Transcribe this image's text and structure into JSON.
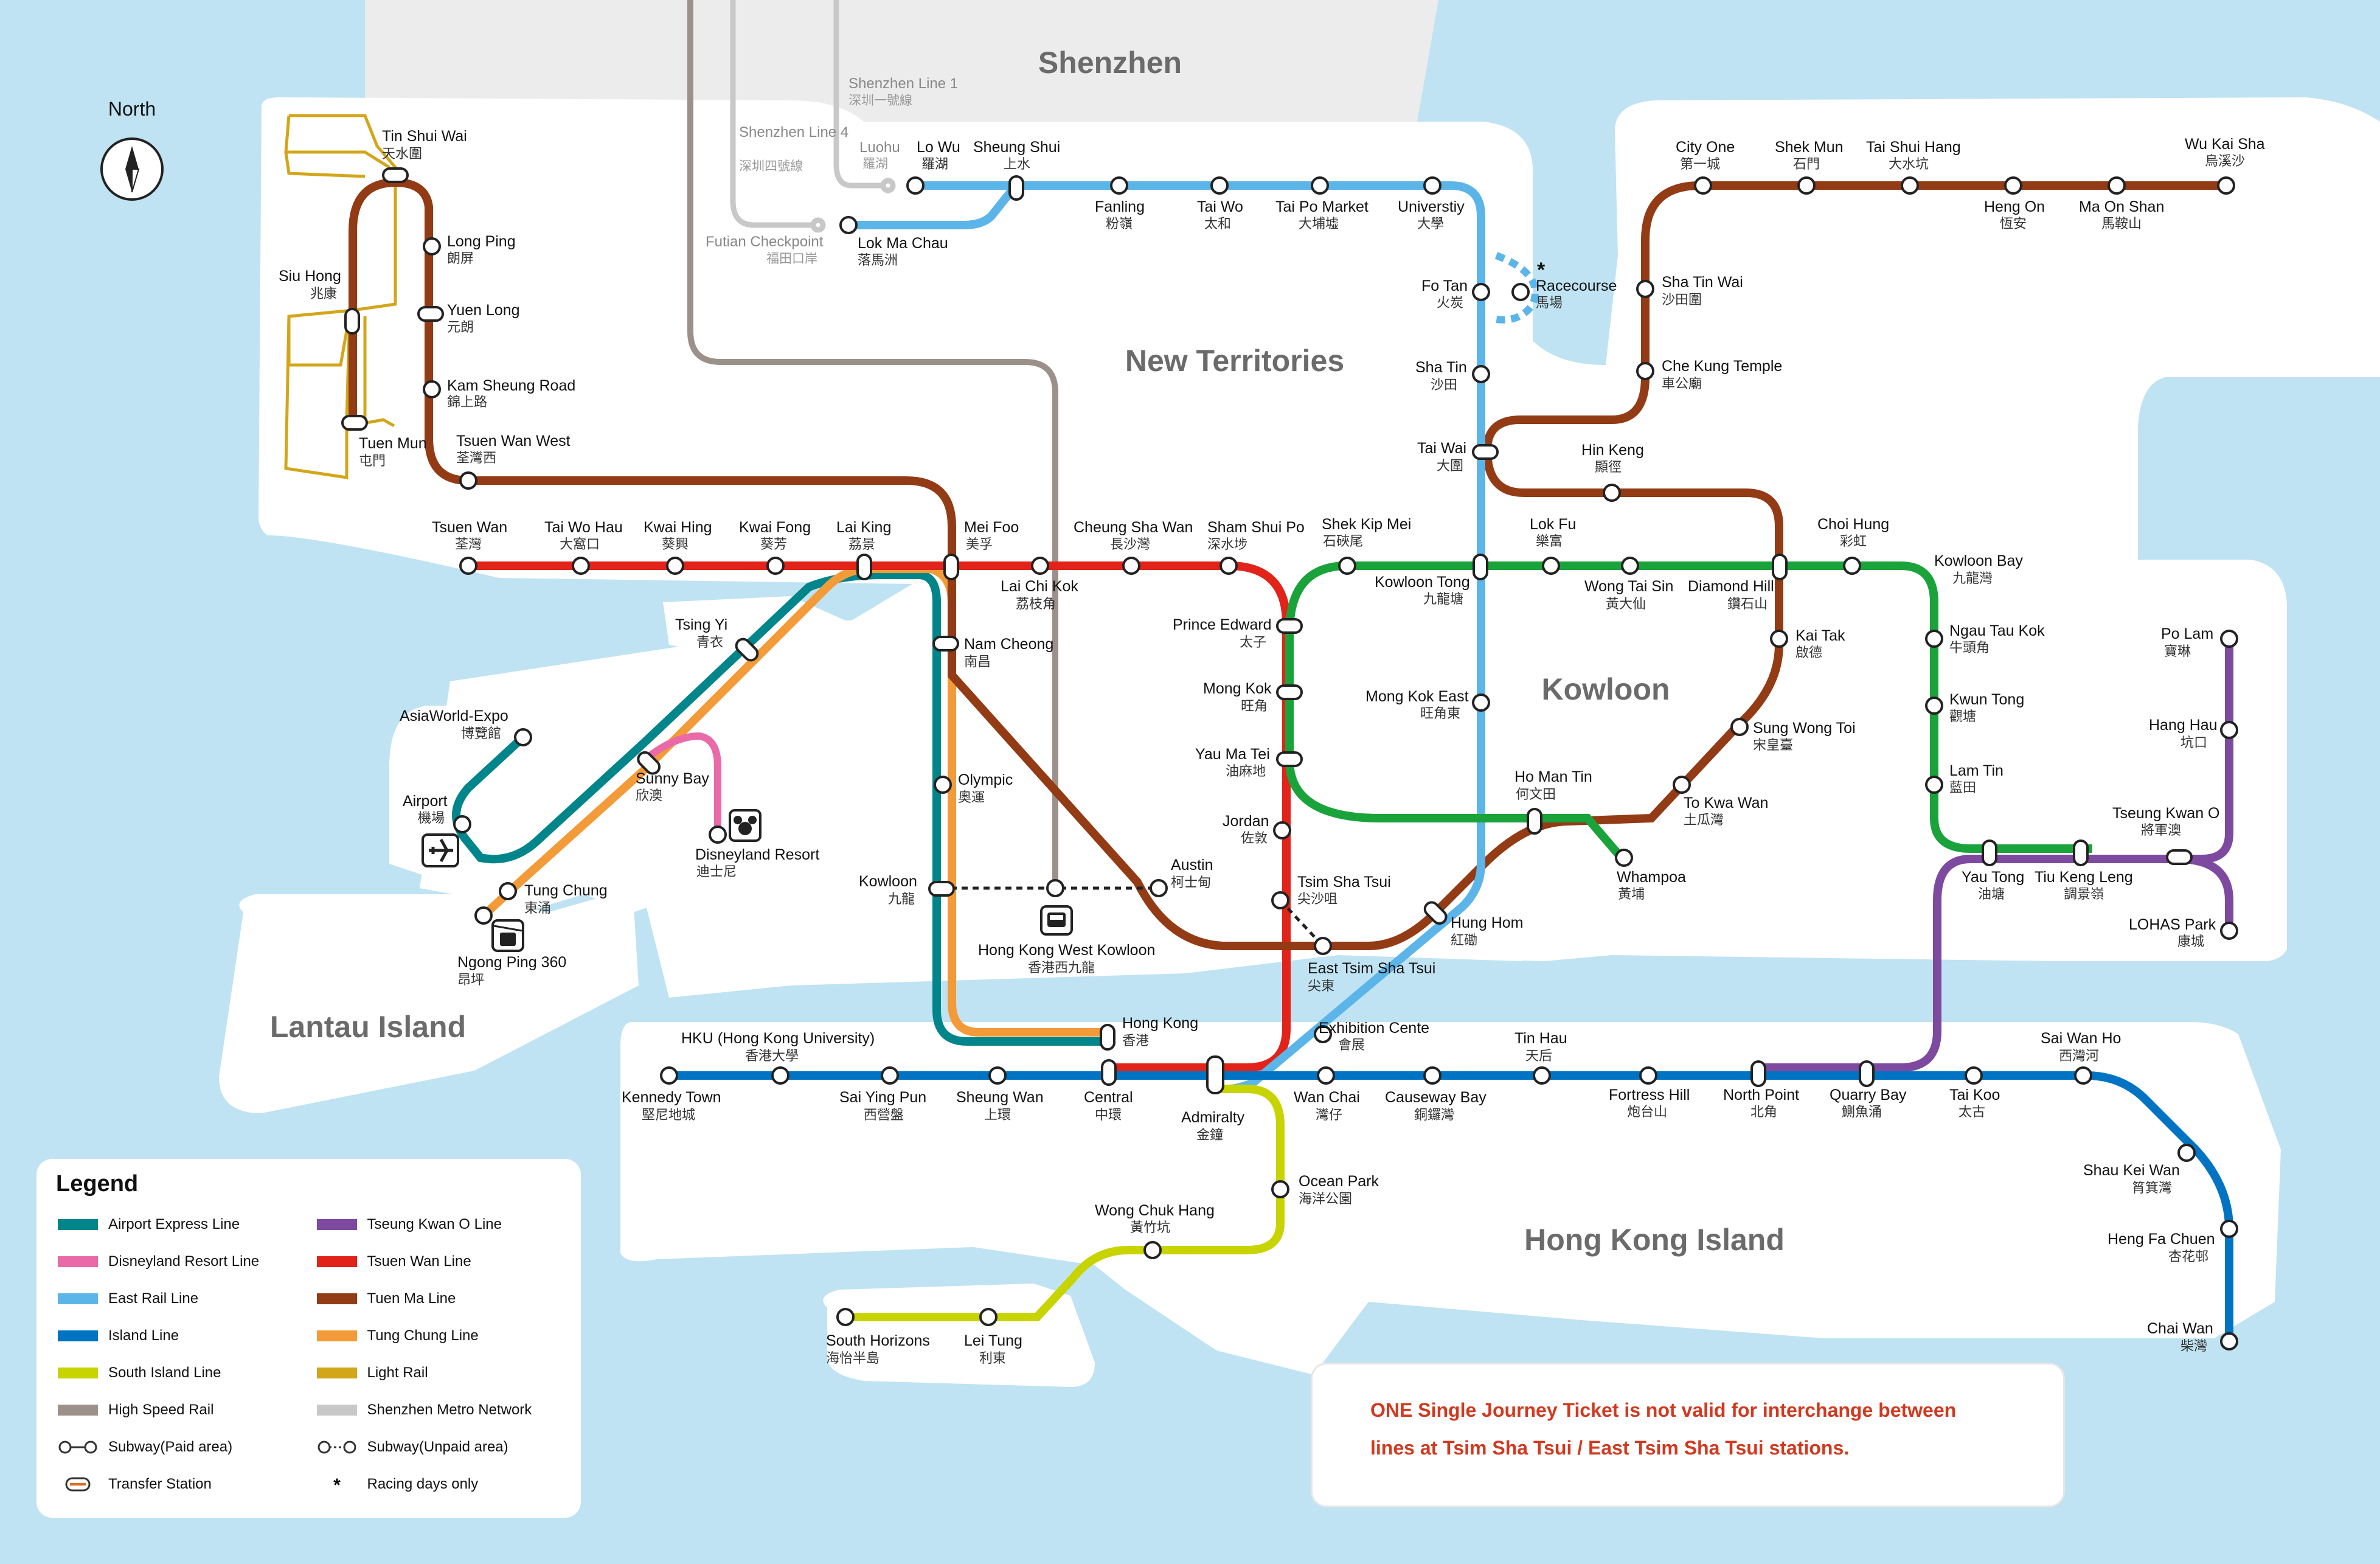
{
  "regions": {
    "shenzhen": "Shenzhen",
    "new_territories": "New Territories",
    "kowloon": "Kowloon",
    "lantau": "Lantau Island",
    "hk_island": "Hong Kong Island"
  },
  "compass": {
    "label": "North",
    "icon": "compass-icon"
  },
  "shenzhen_labels": [
    {
      "en": "Shenzhen Line 1",
      "zh": "深圳一號線"
    },
    {
      "en": "Shenzhen Line 4",
      "zh": "深圳四號線"
    },
    {
      "en": "Luohu",
      "zh": "羅湖"
    },
    {
      "en": "Futian Checkpoint",
      "zh": "福田口岸"
    }
  ],
  "colors": {
    "airport_express": "#00858a",
    "disneyland": "#ea6aa8",
    "east_rail": "#5cb5e8",
    "island": "#0074c2",
    "south_island": "#c8d400",
    "high_speed": "#9c918a",
    "tseung_kwan_o": "#7d4aa0",
    "tsuen_wan": "#e2231a",
    "tuen_ma": "#923b15",
    "tung_chung": "#f39b38",
    "light_rail": "#d3a61a",
    "shenzhen_metro": "#c8c8c8",
    "water": "#bfe3f2",
    "land": "#ffffff"
  },
  "stations": [
    {
      "en": "Tin Shui Wai",
      "zh": "天水圍"
    },
    {
      "en": "Long Ping",
      "zh": "朗屏"
    },
    {
      "en": "Siu Hong",
      "zh": "兆康"
    },
    {
      "en": "Yuen Long",
      "zh": "元朗"
    },
    {
      "en": "Kam Sheung Road",
      "zh": "錦上路"
    },
    {
      "en": "Tuen Mun",
      "zh": "屯門"
    },
    {
      "en": "Tsuen Wan West",
      "zh": "荃灣西"
    },
    {
      "en": "Lo Wu",
      "zh": "羅湖"
    },
    {
      "en": "Sheung Shui",
      "zh": "上水"
    },
    {
      "en": "Lok Ma Chau",
      "zh": "落馬洲"
    },
    {
      "en": "Fanling",
      "zh": "粉嶺"
    },
    {
      "en": "Tai Wo",
      "zh": "太和"
    },
    {
      "en": "Tai Po Market",
      "zh": "大埔墟"
    },
    {
      "en": "Universtiy",
      "zh": "大學"
    },
    {
      "en": "Fo Tan",
      "zh": "火炭"
    },
    {
      "en": "Racecourse",
      "zh": "馬場"
    },
    {
      "en": "Sha Tin",
      "zh": "沙田"
    },
    {
      "en": "Tai Wai",
      "zh": "大圍"
    },
    {
      "en": "City One",
      "zh": "第一城"
    },
    {
      "en": "Shek Mun",
      "zh": "石門"
    },
    {
      "en": "Tai Shui Hang",
      "zh": "大水坑"
    },
    {
      "en": "Heng On",
      "zh": "恆安"
    },
    {
      "en": "Ma On Shan",
      "zh": "馬鞍山"
    },
    {
      "en": "Wu Kai Sha",
      "zh": "烏溪沙"
    },
    {
      "en": "Sha Tin Wai",
      "zh": "沙田圍"
    },
    {
      "en": "Che Kung Temple",
      "zh": "車公廟"
    },
    {
      "en": "Hin Keng",
      "zh": "顯徑"
    },
    {
      "en": "Tsuen Wan",
      "zh": "荃灣"
    },
    {
      "en": "Tai Wo Hau",
      "zh": "大窩口"
    },
    {
      "en": "Kwai Hing",
      "zh": "葵興"
    },
    {
      "en": "Kwai Fong",
      "zh": "葵芳"
    },
    {
      "en": "Lai King",
      "zh": "荔景"
    },
    {
      "en": "Mei Foo",
      "zh": "美孚"
    },
    {
      "en": "Lai Chi Kok",
      "zh": "荔枝角"
    },
    {
      "en": "Cheung Sha Wan",
      "zh": "長沙灣"
    },
    {
      "en": "Sham Shui Po",
      "zh": "深水埗"
    },
    {
      "en": "Shek Kip Mei",
      "zh": "石硤尾"
    },
    {
      "en": "Kowloon Tong",
      "zh": "九龍塘"
    },
    {
      "en": "Lok Fu",
      "zh": "樂富"
    },
    {
      "en": "Wong Tai Sin",
      "zh": "黃大仙"
    },
    {
      "en": "Diamond Hill",
      "zh": "鑽石山"
    },
    {
      "en": "Choi Hung",
      "zh": "彩虹"
    },
    {
      "en": "Kowloon Bay",
      "zh": "九龍灣"
    },
    {
      "en": "Ngau Tau Kok",
      "zh": "牛頭角"
    },
    {
      "en": "Kwun Tong",
      "zh": "觀塘"
    },
    {
      "en": "Lam Tin",
      "zh": "藍田"
    },
    {
      "en": "Po Lam",
      "zh": "寶琳"
    },
    {
      "en": "Hang Hau",
      "zh": "坑口"
    },
    {
      "en": "Tseung Kwan O",
      "zh": "將軍澳"
    },
    {
      "en": "LOHAS Park",
      "zh": "康城"
    },
    {
      "en": "Yau Tong",
      "zh": "油塘"
    },
    {
      "en": "Tiu Keng Leng",
      "zh": "調景嶺"
    },
    {
      "en": "Kai Tak",
      "zh": "啟德"
    },
    {
      "en": "Sung Wong Toi",
      "zh": "宋皇臺"
    },
    {
      "en": "To Kwa Wan",
      "zh": "土瓜灣"
    },
    {
      "en": "Ho Man Tin",
      "zh": "何文田"
    },
    {
      "en": "Whampoa",
      "zh": "黃埔"
    },
    {
      "en": "Mong Kok East",
      "zh": "旺角東"
    },
    {
      "en": "Prince Edward",
      "zh": "太子"
    },
    {
      "en": "Mong Kok",
      "zh": "旺角"
    },
    {
      "en": "Yau Ma Tei",
      "zh": "油麻地"
    },
    {
      "en": "Jordan",
      "zh": "佐敦"
    },
    {
      "en": "Tsim Sha Tsui",
      "zh": "尖沙咀"
    },
    {
      "en": "East Tsim Sha Tsui",
      "zh": "尖東"
    },
    {
      "en": "Hung Hom",
      "zh": "紅磡"
    },
    {
      "en": "Austin",
      "zh": "柯士甸"
    },
    {
      "en": "Hong Kong West Kowloon",
      "zh": "香港西九龍"
    },
    {
      "en": "Kowloon",
      "zh": "九龍"
    },
    {
      "en": "Olympic",
      "zh": "奧運"
    },
    {
      "en": "Nam Cheong",
      "zh": "南昌"
    },
    {
      "en": "Tsing Yi",
      "zh": "青衣"
    },
    {
      "en": "AsiaWorld-Expo",
      "zh": "博覽館"
    },
    {
      "en": "Airport",
      "zh": "機場"
    },
    {
      "en": "Sunny Bay",
      "zh": "欣澳"
    },
    {
      "en": "Disneyland Resort",
      "zh": "迪士尼"
    },
    {
      "en": "Tung Chung",
      "zh": "東涌"
    },
    {
      "en": "Ngong Ping 360",
      "zh": "昂坪"
    },
    {
      "en": "Hong Kong",
      "zh": "香港"
    },
    {
      "en": "HKU (Hong Kong University)",
      "zh": "香港大學"
    },
    {
      "en": "Kennedy Town",
      "zh": "堅尼地城"
    },
    {
      "en": "Sai Ying Pun",
      "zh": "西營盤"
    },
    {
      "en": "Sheung Wan",
      "zh": "上環"
    },
    {
      "en": "Central",
      "zh": "中環"
    },
    {
      "en": "Admiralty",
      "zh": "金鐘"
    },
    {
      "en": "Exhibition Cente",
      "zh": "會展"
    },
    {
      "en": "Wan Chai",
      "zh": "灣仔"
    },
    {
      "en": "Causeway Bay",
      "zh": "銅鑼灣"
    },
    {
      "en": "Tin Hau",
      "zh": "天后"
    },
    {
      "en": "Fortress Hill",
      "zh": "炮台山"
    },
    {
      "en": "North Point",
      "zh": "北角"
    },
    {
      "en": "Quarry Bay",
      "zh": "鰂魚涌"
    },
    {
      "en": "Tai Koo",
      "zh": "太古"
    },
    {
      "en": "Sai Wan Ho",
      "zh": "西灣河"
    },
    {
      "en": "Shau Kei Wan",
      "zh": "筲箕灣"
    },
    {
      "en": "Heng Fa Chuen",
      "zh": "杏花邨"
    },
    {
      "en": "Chai Wan",
      "zh": "柴灣"
    },
    {
      "en": "Ocean Park",
      "zh": "海洋公園"
    },
    {
      "en": "Wong Chuk Hang",
      "zh": "黃竹坑"
    },
    {
      "en": "Lei Tung",
      "zh": "利東"
    },
    {
      "en": "South Horizons",
      "zh": "海怡半島"
    }
  ],
  "racecourse_note": "*",
  "legend": {
    "title": "Legend",
    "items": [
      {
        "label": "Airport Express Line",
        "color": "#00858a",
        "kind": "bar"
      },
      {
        "label": "Tseung Kwan O Line",
        "color": "#7d4aa0",
        "kind": "bar"
      },
      {
        "label": "Disneyland Resort Line",
        "color": "#ea6aa8",
        "kind": "bar"
      },
      {
        "label": "Tsuen Wan Line",
        "color": "#e2231a",
        "kind": "bar"
      },
      {
        "label": "East Rail Line",
        "color": "#5cb5e8",
        "kind": "bar"
      },
      {
        "label": "Tuen Ma Line",
        "color": "#923b15",
        "kind": "bar"
      },
      {
        "label": "Island Line",
        "color": "#0074c2",
        "kind": "bar"
      },
      {
        "label": "Tung Chung Line",
        "color": "#f39b38",
        "kind": "bar"
      },
      {
        "label": "South Island Line",
        "color": "#c8d400",
        "kind": "bar"
      },
      {
        "label": "Light Rail",
        "color": "#d3a61a",
        "kind": "bar"
      },
      {
        "label": "High Speed Rail",
        "color": "#9c918a",
        "kind": "bar"
      },
      {
        "label": "Shenzhen Metro Network",
        "color": "#c8c8c8",
        "kind": "bar"
      },
      {
        "label": "Subway(Paid area)",
        "color": "#333333",
        "kind": "paid"
      },
      {
        "label": "Subway(Unpaid area)",
        "color": "#333333",
        "kind": "unpaid"
      },
      {
        "label": "Transfer Station",
        "color": "#333333",
        "kind": "transfer"
      },
      {
        "label": "Racing days only",
        "color": "#111111",
        "kind": "star"
      }
    ]
  },
  "notice": {
    "line1": "ONE Single Journey Ticket is not valid for interchange between",
    "line2": "lines at Tsim Sha Tsui / East Tsim Sha Tsui stations."
  },
  "icons": {
    "airport": "airplane-icon",
    "disneyland": "mickey-icon",
    "ngong_ping": "cable-car-icon",
    "west_kowloon": "high-speed-train-icon"
  }
}
